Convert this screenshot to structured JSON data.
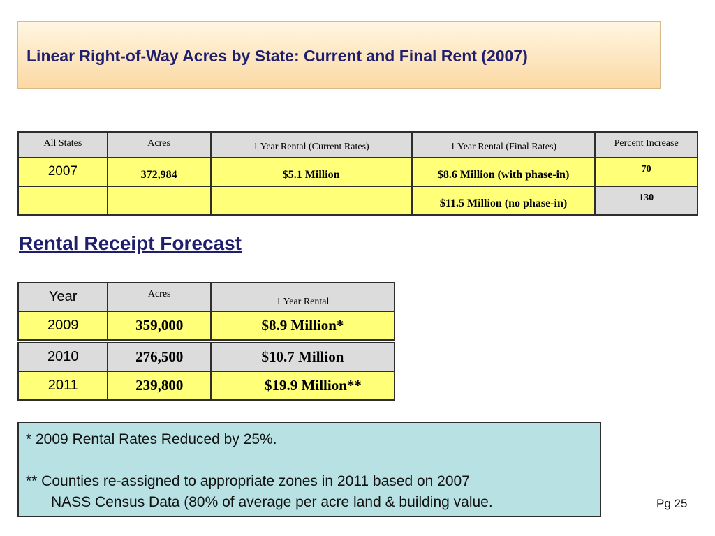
{
  "title": "Linear Right-of-Way Acres by State:  Current and Final Rent (2007)",
  "table1": {
    "headers": [
      "All States",
      "Acres",
      "1 Year Rental  (Current Rates)",
      "1 Year Rental  (Final Rates)",
      "Percent Increase"
    ],
    "row1": {
      "state": "2007",
      "acres": "372,984",
      "current": "$5.1 Million",
      "final": "$8.6 Million (with phase-in)",
      "pct": "70"
    },
    "row2": {
      "state": "",
      "acres": "",
      "current": "",
      "final": "$11.5 Million (no phase-in)",
      "pct": "130"
    }
  },
  "forecast_heading": "Rental Receipt Forecast",
  "table2": {
    "headers": [
      "Year",
      "Acres",
      "1 Year Rental"
    ],
    "rows": [
      {
        "year": "2009",
        "acres": "359,000",
        "rental": "$8.9 Million*"
      },
      {
        "year": "2010",
        "acres": "276,500",
        "rental": "$10.7 Million"
      },
      {
        "year": "2011",
        "acres": "239,800",
        "rental": "$19.9 Million**"
      }
    ]
  },
  "notes": {
    "line1": "*  2009 Rental Rates Reduced by 25%.",
    "line2": "**  Counties re-assigned to appropriate zones in 2011 based on 2007",
    "line3": "NASS Census Data (80% of average per acre land & building value."
  },
  "page_number": "Pg 25",
  "colors": {
    "title_text": "#1f1f6e",
    "highlight_yellow": "#ffff78",
    "header_gray": "#dcdcdc",
    "note_bg": "#b7e1e3"
  }
}
